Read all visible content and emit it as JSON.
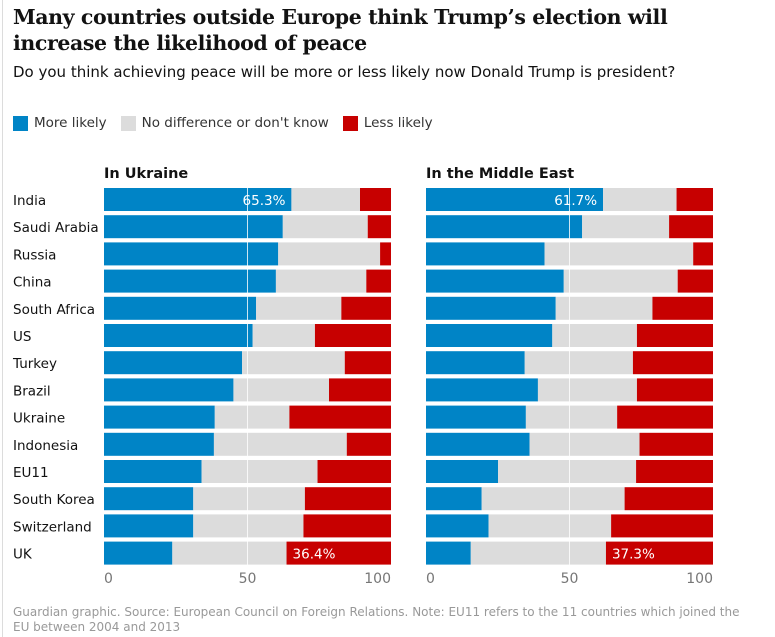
{
  "header": {
    "title": "Many countries outside Europe think Trump’s election will increase the likelihood of peace",
    "subtitle": "Do you think achieving peace will be more or less likely now Donald Trump is president?"
  },
  "legend": [
    {
      "label": "More likely",
      "color": "#0084c6"
    },
    {
      "label": "No difference or don't know",
      "color": "#dcdcdc"
    },
    {
      "label": "Less likely",
      "color": "#c70000"
    }
  ],
  "footer": "Guardian graphic. Source: European Council on Foreign Relations. Note: EU11 refers to the 11 countries which joined the EU between 2004 and 2013",
  "chart_data": [
    {
      "type": "bar",
      "stacked": true,
      "orientation": "horizontal",
      "title": "In Ukraine",
      "categories": [
        "India",
        "Saudi Arabia",
        "Russia",
        "China",
        "South Africa",
        "US",
        "Turkey",
        "Brazil",
        "Ukraine",
        "Indonesia",
        "EU11",
        "South Korea",
        "Switzerland",
        "UK"
      ],
      "xlim": [
        0,
        100
      ],
      "xticks": [
        0,
        50,
        100
      ],
      "series": [
        {
          "name": "More likely",
          "values": [
            65.3,
            62.3,
            60.7,
            59.9,
            53.0,
            51.8,
            48.1,
            45.1,
            38.6,
            38.3,
            34.0,
            31.1,
            31.1,
            23.8
          ]
        },
        {
          "name": "No difference or don't know",
          "values": [
            23.9,
            29.6,
            35.5,
            31.5,
            29.7,
            21.7,
            35.8,
            33.3,
            26.0,
            46.3,
            40.4,
            38.9,
            38.4,
            39.8
          ]
        },
        {
          "name": "Less likely",
          "values": [
            10.8,
            8.1,
            3.8,
            8.6,
            17.3,
            26.5,
            16.1,
            21.6,
            35.4,
            15.4,
            25.6,
            30.0,
            30.5,
            36.4
          ]
        }
      ],
      "data_labels": [
        {
          "category": "India",
          "series": "More likely",
          "text": "65.3%"
        },
        {
          "category": "UK",
          "series": "Less likely",
          "text": "36.4%"
        }
      ]
    },
    {
      "type": "bar",
      "stacked": true,
      "orientation": "horizontal",
      "title": "In the Middle East",
      "categories": [
        "India",
        "Saudi Arabia",
        "Russia",
        "China",
        "South Africa",
        "US",
        "Turkey",
        "Brazil",
        "Ukraine",
        "Indonesia",
        "EU11",
        "South Korea",
        "Switzerland",
        "UK"
      ],
      "xlim": [
        0,
        100
      ],
      "xticks": [
        0,
        50,
        100
      ],
      "series": [
        {
          "name": "More likely",
          "values": [
            61.7,
            54.4,
            41.3,
            48.0,
            45.2,
            44.0,
            34.4,
            39.0,
            34.8,
            36.1,
            25.1,
            19.4,
            21.8,
            15.6
          ]
        },
        {
          "name": "No difference or don't know",
          "values": [
            25.6,
            30.3,
            51.8,
            39.7,
            33.7,
            29.5,
            37.7,
            34.5,
            31.8,
            38.3,
            48.1,
            49.8,
            42.7,
            47.1
          ]
        },
        {
          "name": "Less likely",
          "values": [
            12.7,
            15.3,
            6.9,
            12.3,
            21.1,
            26.5,
            27.9,
            26.5,
            33.4,
            25.6,
            26.8,
            30.8,
            35.5,
            37.3
          ]
        }
      ],
      "data_labels": [
        {
          "category": "India",
          "series": "More likely",
          "text": "61.7%"
        },
        {
          "category": "UK",
          "series": "Less likely",
          "text": "37.3%"
        }
      ]
    }
  ]
}
